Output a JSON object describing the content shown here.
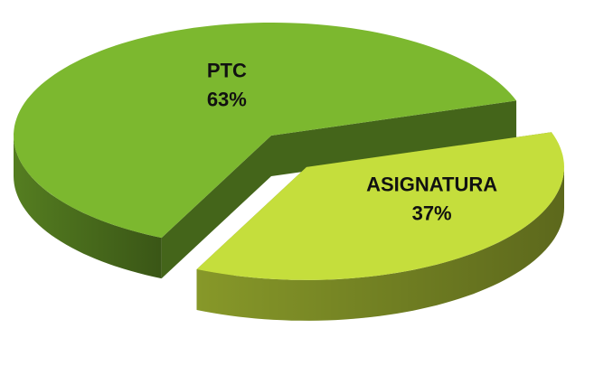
{
  "chart_data": {
    "type": "pie",
    "categories": [
      "PTC",
      "ASIGNATURA"
    ],
    "values": [
      63,
      37
    ],
    "value_labels": [
      "63%",
      "37%"
    ],
    "colors": [
      "#7cb82f",
      "#c5de3c"
    ],
    "exploded": [
      false,
      true
    ]
  }
}
